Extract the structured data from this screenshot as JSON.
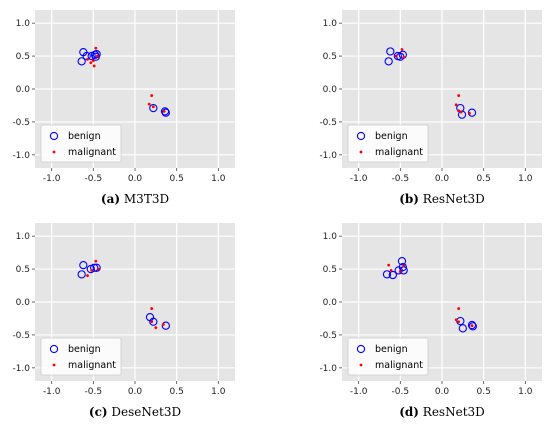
{
  "chart_data": [
    {
      "type": "scatter",
      "caption_label": "(a)",
      "caption_name": "M3T3D",
      "xlim": [
        -1.2,
        1.2
      ],
      "ylim": [
        -1.2,
        1.2
      ],
      "xticks": [
        "-1.0",
        "-0.5",
        "0.0",
        "0.5",
        "1.0"
      ],
      "yticks": [
        "-1.0",
        "-0.5",
        "0.0",
        "0.5",
        "1.0"
      ],
      "grid": true,
      "legend_position": "lower-left",
      "series": [
        {
          "name": "benign",
          "marker": "open-circle",
          "color": "#0000ff",
          "points": [
            [
              -0.62,
              0.56
            ],
            [
              -0.58,
              0.5
            ],
            [
              -0.52,
              0.5
            ],
            [
              -0.48,
              0.52
            ],
            [
              -0.47,
              0.49
            ],
            [
              -0.46,
              0.53
            ],
            [
              -0.64,
              0.42
            ],
            [
              0.22,
              -0.29
            ],
            [
              0.36,
              -0.34
            ],
            [
              0.37,
              -0.36
            ]
          ]
        },
        {
          "name": "malignant",
          "marker": "dot",
          "color": "#ff0000",
          "points": [
            [
              -0.57,
              0.45
            ],
            [
              -0.53,
              0.4
            ],
            [
              -0.5,
              0.43
            ],
            [
              -0.49,
              0.35
            ],
            [
              -0.47,
              0.62
            ],
            [
              -0.45,
              0.5
            ],
            [
              0.2,
              -0.1
            ],
            [
              0.17,
              -0.23
            ],
            [
              0.22,
              -0.27
            ],
            [
              0.35,
              -0.34
            ]
          ]
        }
      ]
    },
    {
      "type": "scatter",
      "caption_label": "(b)",
      "caption_name": "ResNet3D",
      "xlim": [
        -1.2,
        1.2
      ],
      "ylim": [
        -1.2,
        1.2
      ],
      "xticks": [
        "-1.0",
        "-0.5",
        "0.0",
        "0.5",
        "1.0"
      ],
      "yticks": [
        "-1.0",
        "-0.5",
        "0.0",
        "0.5",
        "1.0"
      ],
      "grid": true,
      "legend_position": "lower-left",
      "series": [
        {
          "name": "benign",
          "marker": "open-circle",
          "color": "#0000ff",
          "points": [
            [
              -0.62,
              0.57
            ],
            [
              -0.53,
              0.5
            ],
            [
              -0.5,
              0.49
            ],
            [
              -0.47,
              0.52
            ],
            [
              -0.64,
              0.42
            ],
            [
              0.22,
              -0.29
            ],
            [
              0.24,
              -0.39
            ],
            [
              0.36,
              -0.36
            ]
          ]
        },
        {
          "name": "malignant",
          "marker": "dot",
          "color": "#ff0000",
          "points": [
            [
              -0.55,
              0.5
            ],
            [
              -0.48,
              0.6
            ],
            [
              -0.46,
              0.48
            ],
            [
              0.2,
              -0.1
            ],
            [
              0.17,
              -0.24
            ],
            [
              0.2,
              -0.33
            ],
            [
              0.23,
              -0.35
            ],
            [
              0.33,
              -0.37
            ]
          ]
        }
      ]
    },
    {
      "type": "scatter",
      "caption_label": "(c)",
      "caption_name": "DeseNet3D",
      "xlim": [
        -1.2,
        1.2
      ],
      "ylim": [
        -1.2,
        1.2
      ],
      "xticks": [
        "-1.0",
        "-0.5",
        "0.0",
        "0.5",
        "1.0"
      ],
      "yticks": [
        "-1.0",
        "-0.5",
        "0.0",
        "0.5",
        "1.0"
      ],
      "grid": true,
      "legend_position": "lower-left",
      "series": [
        {
          "name": "benign",
          "marker": "open-circle",
          "color": "#0000ff",
          "points": [
            [
              -0.62,
              0.56
            ],
            [
              -0.53,
              0.5
            ],
            [
              -0.49,
              0.52
            ],
            [
              -0.46,
              0.52
            ],
            [
              -0.64,
              0.42
            ],
            [
              0.18,
              -0.23
            ],
            [
              0.22,
              -0.3
            ],
            [
              0.37,
              -0.36
            ]
          ]
        },
        {
          "name": "malignant",
          "marker": "dot",
          "color": "#ff0000",
          "points": [
            [
              -0.57,
              0.4
            ],
            [
              -0.52,
              0.48
            ],
            [
              -0.47,
              0.62
            ],
            [
              -0.44,
              0.5
            ],
            [
              0.2,
              -0.1
            ],
            [
              0.2,
              -0.3
            ],
            [
              0.25,
              -0.39
            ],
            [
              0.34,
              -0.34
            ]
          ]
        }
      ]
    },
    {
      "type": "scatter",
      "caption_label": "(d)",
      "caption_name": "ResNet3D",
      "xlim": [
        -1.2,
        1.2
      ],
      "ylim": [
        -1.2,
        1.2
      ],
      "xticks": [
        "-1.0",
        "-0.5",
        "0.0",
        "0.5",
        "1.0"
      ],
      "yticks": [
        "-1.0",
        "-0.5",
        "0.0",
        "0.5",
        "1.0"
      ],
      "grid": true,
      "legend_position": "lower-left",
      "series": [
        {
          "name": "benign",
          "marker": "open-circle",
          "color": "#0000ff",
          "points": [
            [
              -0.66,
              0.42
            ],
            [
              -0.59,
              0.41
            ],
            [
              -0.52,
              0.48
            ],
            [
              -0.48,
              0.62
            ],
            [
              -0.47,
              0.53
            ],
            [
              -0.46,
              0.48
            ],
            [
              0.22,
              -0.29
            ],
            [
              0.25,
              -0.4
            ],
            [
              0.36,
              -0.35
            ],
            [
              0.37,
              -0.37
            ]
          ]
        },
        {
          "name": "malignant",
          "marker": "dot",
          "color": "#ff0000",
          "points": [
            [
              -0.64,
              0.56
            ],
            [
              -0.61,
              0.48
            ],
            [
              -0.5,
              0.46
            ],
            [
              -0.46,
              0.55
            ],
            [
              0.2,
              -0.1
            ],
            [
              0.17,
              -0.27
            ],
            [
              0.2,
              -0.3
            ],
            [
              0.36,
              -0.36
            ]
          ]
        }
      ]
    }
  ]
}
